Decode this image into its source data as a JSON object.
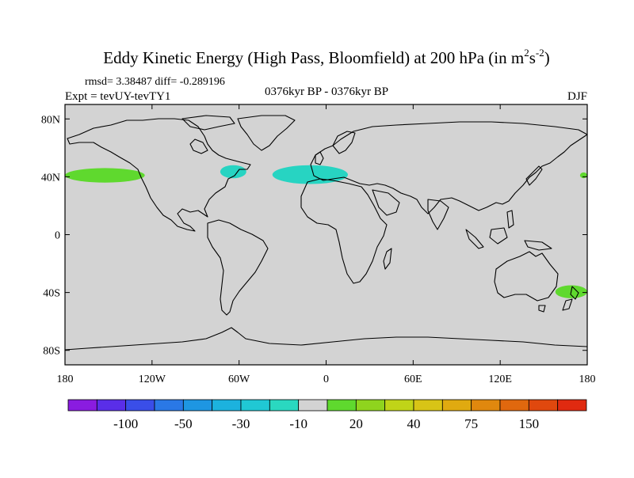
{
  "title": {
    "main": "Eddy Kinetic Energy (High Pass, Bloomfield) at 200 hPa (in m",
    "sup1": "2",
    "mid": "s",
    "sup2": "-2",
    "end": ")"
  },
  "stats": "rmsd= 3.38487  diff= -0.289196",
  "expt": "Expt = tevUY-tevTY1",
  "period": "0376kyr BP - 0376kyr BP",
  "season": "DJF",
  "map": {
    "projection": "cylindrical equidistant",
    "lon_range": [
      -180,
      180
    ],
    "lat_range": [
      -90,
      90
    ],
    "background_color": "#d3d3d3",
    "lat_ticks": [
      {
        "value": 80,
        "label": "80N"
      },
      {
        "value": 40,
        "label": "40N"
      },
      {
        "value": 0,
        "label": "0"
      },
      {
        "value": -40,
        "label": "40S"
      },
      {
        "value": -80,
        "label": "80S"
      }
    ],
    "lon_ticks": [
      {
        "value": -180,
        "label": "180"
      },
      {
        "value": -120,
        "label": "120W"
      },
      {
        "value": -60,
        "label": "60W"
      },
      {
        "value": 0,
        "label": "0"
      },
      {
        "value": 60,
        "label": "60E"
      },
      {
        "value": 120,
        "label": "120E"
      },
      {
        "value": 180,
        "label": "180"
      }
    ],
    "anomalies": [
      {
        "name": "north-pacific-positive",
        "lon": [
          -180,
          -125
        ],
        "lat": [
          36,
          46
        ],
        "color": "#5fd92e"
      },
      {
        "name": "dateline-edge-positive",
        "lon": [
          175,
          180
        ],
        "lat": [
          39,
          43
        ],
        "color": "#5fd92e"
      },
      {
        "name": "north-atlantic-west-negative",
        "lon": [
          -73,
          -55
        ],
        "lat": [
          39,
          48
        ],
        "color": "#27d4c2"
      },
      {
        "name": "north-atlantic-east-negative",
        "lon": [
          -37,
          15
        ],
        "lat": [
          35,
          48
        ],
        "color": "#27d4c2"
      },
      {
        "name": "new-zealand-positive",
        "lon": [
          158,
          180
        ],
        "lat": [
          -44,
          -35
        ],
        "color": "#5fd92e"
      }
    ]
  },
  "colorbar": {
    "colors": [
      "#8a1ce0",
      "#5a2ee8",
      "#3a4ee8",
      "#2a78e6",
      "#1e96e2",
      "#1cb2de",
      "#20c8d4",
      "#2ad8c0",
      "#d3d3d3",
      "#5fd92e",
      "#8fd41e",
      "#c0d418",
      "#d8c416",
      "#e0aa10",
      "#e0880e",
      "#e0680e",
      "#e0480e",
      "#e02a10"
    ],
    "labels": [
      {
        "text": "-100",
        "boundary": 1.5
      },
      {
        "text": "-50",
        "boundary": 3.5
      },
      {
        "text": "-30",
        "boundary": 5.5
      },
      {
        "text": "-10",
        "boundary": 7.5
      },
      {
        "text": "20",
        "boundary": 9.5
      },
      {
        "text": "40",
        "boundary": 11.5
      },
      {
        "text": "75",
        "boundary": 13.5
      },
      {
        "text": "150",
        "boundary": 15.5
      }
    ]
  }
}
